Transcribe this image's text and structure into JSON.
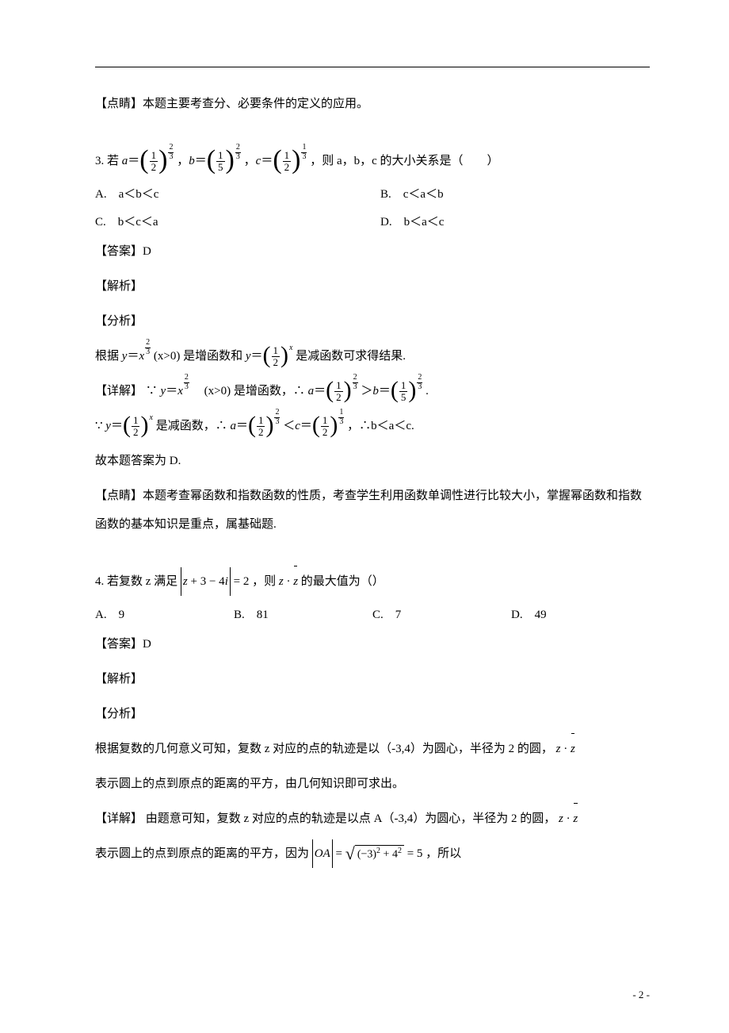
{
  "header_rule_present": true,
  "top_note": "【点睛】本题主要考查分、必要条件的定义的应用。",
  "q3": {
    "stem_prefix": "3. 若 ",
    "stem_middle_text": "，则 a，b，c 的大小关系是（　　）",
    "expr_a": {
      "base_num": "1",
      "base_den": "2",
      "exp_num": "2",
      "exp_den": "3"
    },
    "expr_b": {
      "base_num": "1",
      "base_den": "5",
      "exp_num": "2",
      "exp_den": "3"
    },
    "expr_c": {
      "base_num": "1",
      "base_den": "2",
      "exp_num": "1",
      "exp_den": "3"
    },
    "opt_a": "A.　a＜b＜c",
    "opt_b": "B.　c＜a＜b",
    "opt_c": "C.　b＜c＜a",
    "opt_d": "D.　b＜a＜c",
    "answer_label": "【答案】D",
    "jiexi_label": "【解析】",
    "fenxi_label": "【分析】",
    "fenxi_text_1": "根据 ",
    "fenxi_text_2": " (x>0) 是增函数和 ",
    "fenxi_text_3": " 是减函数可求得结果.",
    "xiangjie_label": "【详解】",
    "xiangjie_1a": "∵",
    "xiangjie_1b": "　(x>0) 是增函数，∴",
    "xiangjie_1c": ".",
    "xiangjie_2a": "∵",
    "xiangjie_2b": " 是减函数，∴",
    "xiangjie_2c": "，∴b＜a＜c.",
    "conclusion": "故本题答案为 D.",
    "dianjing": "【点睛】本题考查幂函数和指数函数的性质，考查学生利用函数单调性进行比较大小，掌握幂函数和指数函数的基本知识是重点，属基础题."
  },
  "q4": {
    "stem_prefix": "4. 若复数 z 满足",
    "stem_expr": "|z + 3 − 4i| = 2",
    "stem_mid": "，则 ",
    "stem_tail": " 的最大值为（）",
    "opt_a": "A.　9",
    "opt_b": "B.　81",
    "opt_c": "C.　7",
    "opt_d": "D.　49",
    "answer_label": "【答案】D",
    "jiexi_label": "【解析】",
    "fenxi_label": "【分析】",
    "fenxi_text": "根据复数的几何意义可知，复数 z 对应的点的轨迹是以（-3,4）为圆心，半径为 2 的圆，",
    "fenxi_tail": "表示圆上的点到原点的距离的平方，由几何知识即可求出。",
    "xiangjie_label": "【详解】",
    "xiangjie_1": "由题意可知，复数 z 对应的点的轨迹是以点 A（-3,4）为圆心，半径为 2 的圆，",
    "xiangjie_2a": "表示圆上的点到原点的距离的平方，因为",
    "oa_eq": "= 5",
    "xiangjie_2c": "，所以"
  },
  "page_num": "- 2 -"
}
